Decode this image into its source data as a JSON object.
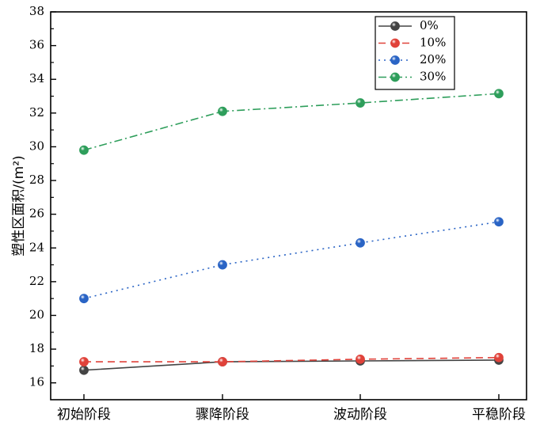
{
  "chart_data": {
    "type": "line",
    "categories": [
      "初始阶段",
      "骤降阶段",
      "波动阶段",
      "平稳阶段"
    ],
    "ylabel": "塑性区面积/(m²)",
    "xlabel": "",
    "ylim": [
      15,
      38
    ],
    "yticks": [
      16,
      18,
      20,
      22,
      24,
      26,
      28,
      30,
      32,
      34,
      36,
      38
    ],
    "grid": false,
    "legend_position": "top-right",
    "series": [
      {
        "name": "0%",
        "values": [
          16.75,
          17.25,
          17.3,
          17.35
        ],
        "color": "#444444",
        "line_style": "solid"
      },
      {
        "name": "10%",
        "values": [
          17.25,
          17.25,
          17.4,
          17.5
        ],
        "color": "#e0423a",
        "line_style": "dashed"
      },
      {
        "name": "20%",
        "values": [
          21.0,
          23.0,
          24.3,
          25.55
        ],
        "color": "#2a64c5",
        "line_style": "dotted"
      },
      {
        "name": "30%",
        "values": [
          29.8,
          32.1,
          32.6,
          33.15
        ],
        "color": "#2e9e5b",
        "line_style": "dashdot"
      }
    ]
  }
}
